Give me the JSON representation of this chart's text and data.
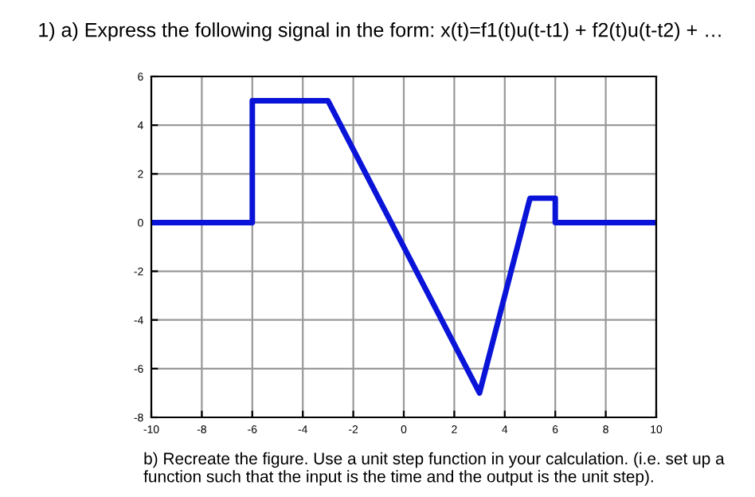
{
  "chart_data": {
    "type": "line",
    "title": "1) a) Express the following signal in the form: x(t)=f1(t)u(t-t1) + f2(t)u(t-t2) + …",
    "annotations": [
      "b) Recreate the figure. Use a unit step function in your calculation. (i.e. set up a function such that the input is the time and the output is the unit step)."
    ],
    "series": [
      {
        "color": "#0a14d8",
        "x": [
          -10,
          -6,
          -6,
          -3,
          3,
          5,
          6,
          6,
          10
        ],
        "values": [
          0,
          0,
          5,
          5,
          -7,
          1,
          1,
          0,
          0
        ]
      }
    ],
    "xlim": [
      -10,
      10
    ],
    "ylim": [
      -8,
      6
    ],
    "xticks": [
      -10,
      -8,
      -6,
      -4,
      -2,
      0,
      2,
      4,
      6,
      8,
      10
    ],
    "yticks": [
      -8,
      -6,
      -4,
      -2,
      0,
      2,
      4,
      6
    ],
    "grid": true,
    "marker": "none",
    "line_style": "solid"
  }
}
